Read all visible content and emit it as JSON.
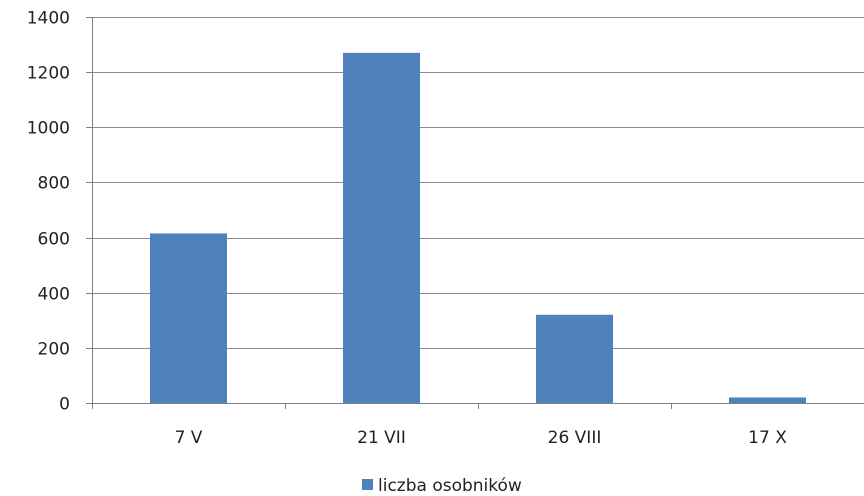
{
  "chart_data": {
    "type": "bar",
    "categories": [
      "7 V",
      "21 VII",
      "26 VIII",
      "17 X"
    ],
    "series": [
      {
        "name": "liczba osobników",
        "values": [
          615,
          1270,
          320,
          20
        ],
        "color": "#4f81bd"
      }
    ],
    "ylim": [
      0,
      1400
    ],
    "yticks": [
      0,
      200,
      400,
      600,
      800,
      1000,
      1200,
      1400
    ],
    "ytick_labels": [
      "0",
      "200",
      "400",
      "600",
      "800",
      "1000",
      "1200",
      "1400"
    ],
    "grid": true,
    "legend_position": "bottom"
  }
}
